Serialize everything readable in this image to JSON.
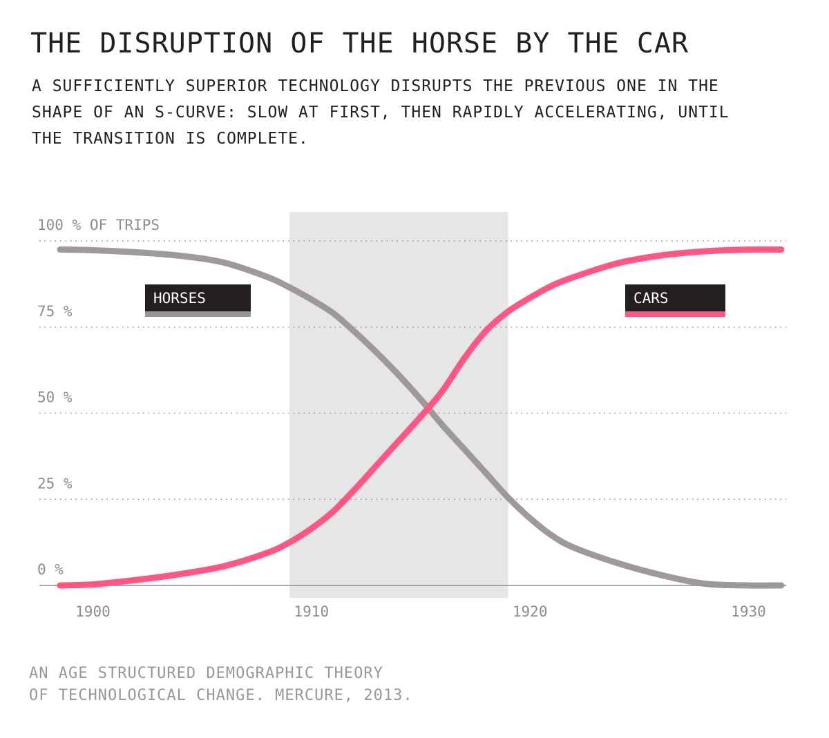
{
  "title": "THE DISRUPTION OF THE HORSE BY THE CAR",
  "subtitle_lines": [
    "A SUFFICIENTLY SUPERIOR TECHNOLOGY DISRUPTS THE PREVIOUS ONE IN THE",
    "SHAPE OF AN S-CURVE: SLOW AT FIRST, THEN RAPIDLY ACCELERATING, UNTIL",
    "THE TRANSITION IS COMPLETE."
  ],
  "source_lines": [
    "AN AGE STRUCTURED DEMOGRAPHIC THEORY",
    "OF TECHNOLOGICAL CHANGE. MERCURE, 2013."
  ],
  "colors": {
    "horses": "#9a9496",
    "cars": "#ff5783",
    "label_bg": "#231f20",
    "highlight": "#e6e6e6"
  },
  "chart_data": {
    "type": "line",
    "x_ticks": [
      1900,
      1910,
      1920,
      1930
    ],
    "xlim": [
      1898.5,
      1931.5
    ],
    "y_ticks": [
      {
        "value": 0,
        "label": "0 %"
      },
      {
        "value": 25,
        "label": "25 %"
      },
      {
        "value": 50,
        "label": "50 %"
      },
      {
        "value": 75,
        "label": "75 %"
      },
      {
        "value": 100,
        "label": "100 % OF TRIPS"
      }
    ],
    "ylim": [
      0,
      100
    ],
    "highlight_range": [
      1909,
      1919
    ],
    "grid": "dotted horizontal",
    "series": [
      {
        "name": "HORSES",
        "x": [
          1898.5,
          1900,
          1902,
          1904,
          1906,
          1908,
          1909,
          1910,
          1911,
          1912,
          1913,
          1914,
          1915,
          1916,
          1917,
          1918,
          1919,
          1920,
          1921,
          1922,
          1924,
          1926,
          1928,
          1930,
          1931.5
        ],
        "values": [
          97.5,
          97.3,
          96.7,
          95.7,
          93.7,
          89.5,
          86.5,
          83,
          79,
          73.5,
          67.5,
          61,
          54,
          46.5,
          39.5,
          32.5,
          25.5,
          19.5,
          14.5,
          11,
          6.5,
          3,
          0.5,
          0,
          0
        ]
      },
      {
        "name": "CARS",
        "x": [
          1898.5,
          1900,
          1902,
          1904,
          1906,
          1908,
          1909,
          1910,
          1911,
          1912,
          1913,
          1914,
          1915,
          1916,
          1917,
          1918,
          1919,
          1920,
          1921,
          1922,
          1924,
          1926,
          1928,
          1930,
          1931.5
        ],
        "values": [
          0,
          0.3,
          1.6,
          3.3,
          5.6,
          9.5,
          12.5,
          16.5,
          21.5,
          28,
          35,
          42,
          49,
          56.5,
          66,
          74,
          79.5,
          83.5,
          87,
          89.5,
          93.5,
          95.8,
          97,
          97.5,
          97.5
        ]
      }
    ],
    "legend": [
      "HORSES",
      "CARS"
    ],
    "legend_placement": "inline labels near each curve"
  }
}
